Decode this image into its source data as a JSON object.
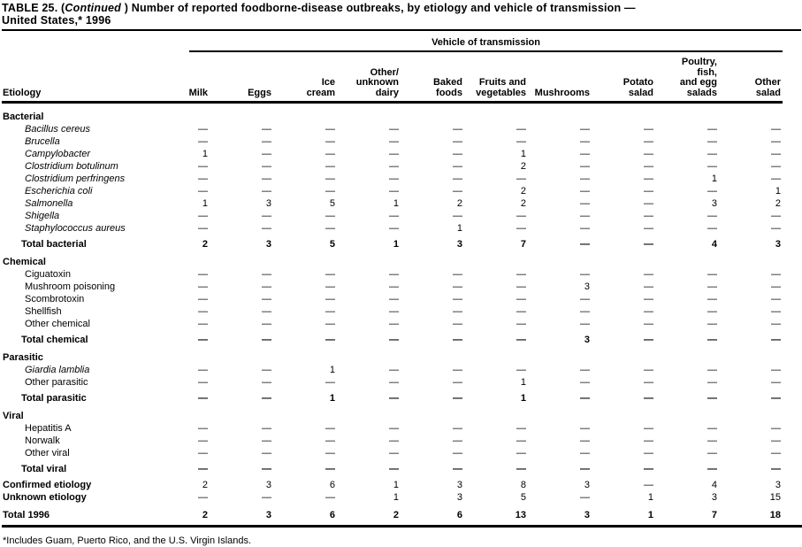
{
  "title": {
    "prefix": "TABLE 25. (",
    "continued": "Continued",
    "line1_rest": " ) Number of reported foodborne-disease outbreaks, by etiology and vehicle of transmission — ",
    "line2": "United States,* 1996"
  },
  "table": {
    "span_header": "Vehicle of transmission",
    "row_header": "Etiology",
    "no_outbreak_symbol": "—",
    "columns": [
      "Milk",
      "Eggs",
      "Ice\ncream",
      "Other/\nunknown\ndairy",
      "Baked\nfoods",
      "Fruits and\nvegetables",
      "Mushrooms",
      "Potato\nsalad",
      "Poultry,\nfish,\nand egg\nsalads",
      "Other\nsalad"
    ],
    "sections": [
      {
        "heading": "Bacterial",
        "rows": [
          {
            "label": "Bacillus cereus",
            "italic": true,
            "values": [
              "—",
              "—",
              "—",
              "—",
              "—",
              "—",
              "—",
              "—",
              "—",
              "—"
            ]
          },
          {
            "label": "Brucella",
            "italic": true,
            "values": [
              "—",
              "—",
              "—",
              "—",
              "—",
              "—",
              "—",
              "—",
              "—",
              "—"
            ]
          },
          {
            "label": "Campylobacter",
            "italic": true,
            "values": [
              "1",
              "—",
              "—",
              "—",
              "—",
              "1",
              "—",
              "—",
              "—",
              "—"
            ]
          },
          {
            "label": "Clostridium botulinum",
            "italic": true,
            "values": [
              "—",
              "—",
              "—",
              "—",
              "—",
              "2",
              "—",
              "—",
              "—",
              "—"
            ]
          },
          {
            "label": "Clostridium perfringens",
            "italic": true,
            "values": [
              "—",
              "—",
              "—",
              "—",
              "—",
              "—",
              "—",
              "—",
              "1",
              "—"
            ]
          },
          {
            "label": "Escherichia coli",
            "italic": true,
            "values": [
              "—",
              "—",
              "—",
              "—",
              "—",
              "2",
              "—",
              "—",
              "—",
              "1"
            ]
          },
          {
            "label": "Salmonella",
            "italic": true,
            "values": [
              "1",
              "3",
              "5",
              "1",
              "2",
              "2",
              "—",
              "—",
              "3",
              "2"
            ]
          },
          {
            "label": "Shigella",
            "italic": true,
            "values": [
              "—",
              "—",
              "—",
              "—",
              "—",
              "—",
              "—",
              "—",
              "—",
              "—"
            ]
          },
          {
            "label": "Staphylococcus aureus",
            "italic": true,
            "values": [
              "—",
              "—",
              "—",
              "—",
              "1",
              "—",
              "—",
              "—",
              "—",
              "—"
            ]
          }
        ],
        "total_row": {
          "label": "Total bacterial",
          "values": [
            "2",
            "3",
            "5",
            "1",
            "3",
            "7",
            "—",
            "—",
            "4",
            "3"
          ]
        }
      },
      {
        "heading": "Chemical",
        "rows": [
          {
            "label": "Ciguatoxin",
            "italic": false,
            "values": [
              "—",
              "—",
              "—",
              "—",
              "—",
              "—",
              "—",
              "—",
              "—",
              "—"
            ]
          },
          {
            "label": "Mushroom poisoning",
            "italic": false,
            "values": [
              "—",
              "—",
              "—",
              "—",
              "—",
              "—",
              "3",
              "—",
              "—",
              "—"
            ]
          },
          {
            "label": "Scombrotoxin",
            "italic": false,
            "values": [
              "—",
              "—",
              "—",
              "—",
              "—",
              "—",
              "—",
              "—",
              "—",
              "—"
            ]
          },
          {
            "label": "Shellfish",
            "italic": false,
            "values": [
              "—",
              "—",
              "—",
              "—",
              "—",
              "—",
              "—",
              "—",
              "—",
              "—"
            ]
          },
          {
            "label": "Other chemical",
            "italic": false,
            "values": [
              "—",
              "—",
              "—",
              "—",
              "—",
              "—",
              "—",
              "—",
              "—",
              "—"
            ]
          }
        ],
        "total_row": {
          "label": "Total chemical",
          "values": [
            "—",
            "—",
            "—",
            "—",
            "—",
            "—",
            "3",
            "—",
            "—",
            "—"
          ]
        }
      },
      {
        "heading": "Parasitic",
        "rows": [
          {
            "label": "Giardia lamblia",
            "italic": true,
            "values": [
              "—",
              "—",
              "1",
              "—",
              "—",
              "—",
              "—",
              "—",
              "—",
              "—"
            ]
          },
          {
            "label": "Other parasitic",
            "italic": false,
            "values": [
              "—",
              "—",
              "—",
              "—",
              "—",
              "1",
              "—",
              "—",
              "—",
              "—"
            ]
          }
        ],
        "total_row": {
          "label": "Total parasitic",
          "values": [
            "—",
            "—",
            "1",
            "—",
            "—",
            "1",
            "—",
            "—",
            "—",
            "—"
          ]
        }
      },
      {
        "heading": "Viral",
        "rows": [
          {
            "label": "Hepatitis A",
            "italic": false,
            "values": [
              "—",
              "—",
              "—",
              "—",
              "—",
              "—",
              "—",
              "—",
              "—",
              "—"
            ]
          },
          {
            "label": "Norwalk",
            "italic": false,
            "values": [
              "—",
              "—",
              "—",
              "—",
              "—",
              "—",
              "—",
              "—",
              "—",
              "—"
            ]
          },
          {
            "label": "Other viral",
            "italic": false,
            "values": [
              "—",
              "—",
              "—",
              "—",
              "—",
              "—",
              "—",
              "—",
              "—",
              "—"
            ]
          }
        ],
        "total_row": {
          "label": "Total viral",
          "values": [
            "—",
            "—",
            "—",
            "—",
            "—",
            "—",
            "—",
            "—",
            "—",
            "—"
          ]
        }
      }
    ],
    "summary_rows": [
      {
        "label": "Confirmed etiology",
        "values": [
          "2",
          "3",
          "6",
          "1",
          "3",
          "8",
          "3",
          "—",
          "4",
          "3"
        ]
      },
      {
        "label": "Unknown etiology",
        "values": [
          "—",
          "—",
          "—",
          "1",
          "3",
          "5",
          "—",
          "1",
          "3",
          "15"
        ]
      }
    ],
    "grand_total_row": {
      "label": "Total 1996",
      "values": [
        "2",
        "3",
        "6",
        "2",
        "6",
        "13",
        "3",
        "1",
        "7",
        "18"
      ]
    }
  },
  "footnote": "*Includes Guam, Puerto Rico, and the U.S. Virgin Islands."
}
